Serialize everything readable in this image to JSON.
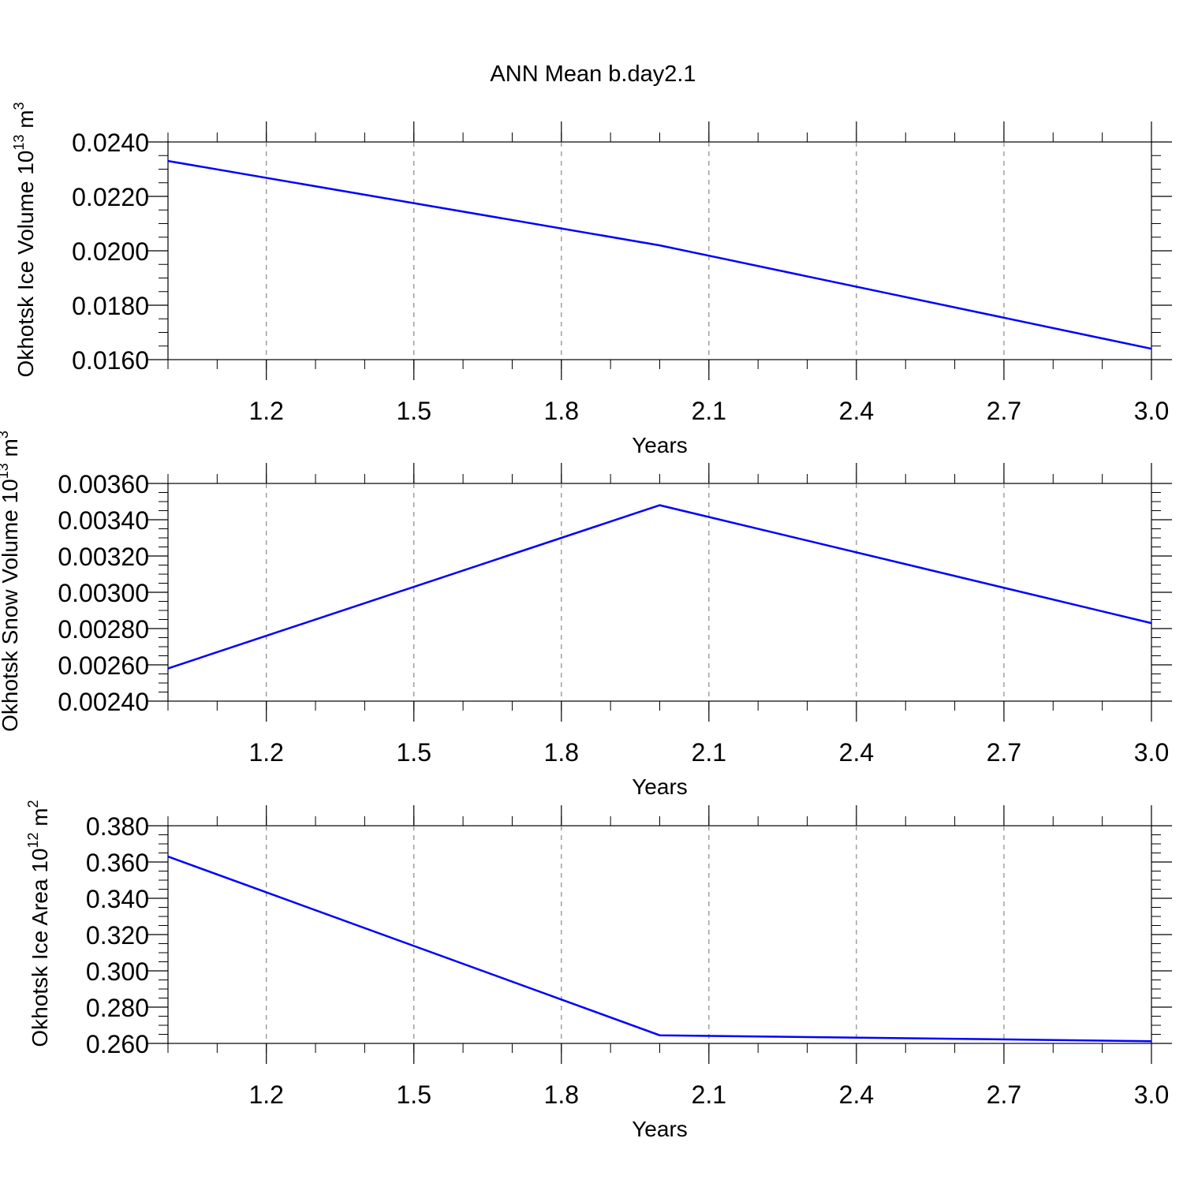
{
  "title": "ANN Mean b.day2.1",
  "chart_data": [
    {
      "type": "line",
      "ylabel": "Okhotsk Ice Volume 10",
      "ylabel_exp": "13",
      "ylabel_unit": " m",
      "ylabel_unit_exp": "3",
      "xlabel": "Years",
      "xlim": [
        1,
        3
      ],
      "ylim": [
        0.016,
        0.024
      ],
      "x_ticks": [
        "1.2",
        "1.5",
        "1.8",
        "2.1",
        "2.4",
        "2.7",
        "3.0"
      ],
      "y_ticks": [
        "0.0160",
        "0.0180",
        "0.0200",
        "0.0220",
        "0.0240"
      ],
      "grid": "vertical dashed",
      "color": "#0000ff",
      "series": [
        {
          "x": [
            1,
            2,
            3
          ],
          "y": [
            0.0233,
            0.0202,
            0.0164
          ]
        }
      ]
    },
    {
      "type": "line",
      "ylabel": "Okhotsk Snow Volume 10",
      "ylabel_exp": "13",
      "ylabel_unit": " m",
      "ylabel_unit_exp": "3",
      "xlabel": "Years",
      "xlim": [
        1,
        3
      ],
      "ylim": [
        0.0024,
        0.0036
      ],
      "x_ticks": [
        "1.2",
        "1.5",
        "1.8",
        "2.1",
        "2.4",
        "2.7",
        "3.0"
      ],
      "y_ticks": [
        "0.00240",
        "0.00260",
        "0.00280",
        "0.00300",
        "0.00320",
        "0.00340",
        "0.00360"
      ],
      "grid": "vertical dashed",
      "color": "#0000ff",
      "series": [
        {
          "x": [
            1,
            2,
            3
          ],
          "y": [
            0.00258,
            0.00348,
            0.00283
          ]
        }
      ]
    },
    {
      "type": "line",
      "ylabel": "Okhotsk Ice Area 10",
      "ylabel_exp": "12",
      "ylabel_unit": " m",
      "ylabel_unit_exp": "2",
      "xlabel": "Years",
      "xlim": [
        1,
        3
      ],
      "ylim": [
        0.26,
        0.38
      ],
      "x_ticks": [
        "1.2",
        "1.5",
        "1.8",
        "2.1",
        "2.4",
        "2.7",
        "3.0"
      ],
      "y_ticks": [
        "0.260",
        "0.280",
        "0.300",
        "0.320",
        "0.340",
        "0.360",
        "0.380"
      ],
      "grid": "vertical dashed",
      "color": "#0000ff",
      "series": [
        {
          "x": [
            1,
            2,
            3
          ],
          "y": [
            0.363,
            0.2645,
            0.2612
          ]
        }
      ]
    }
  ]
}
